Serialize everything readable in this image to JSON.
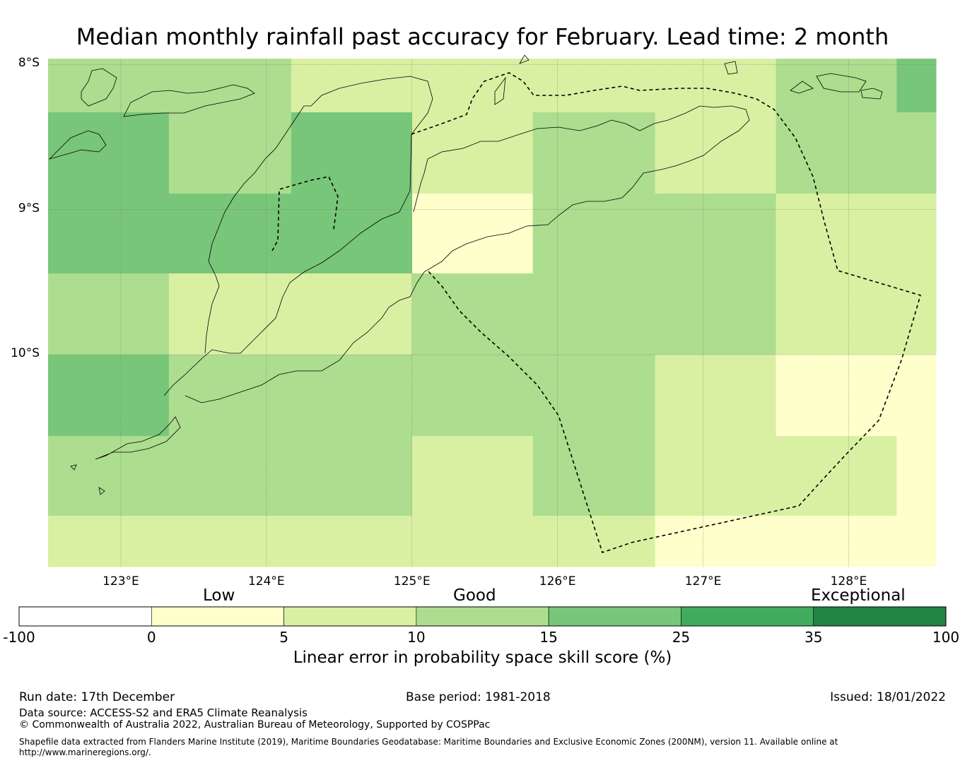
{
  "title": "Median monthly rainfall past accuracy for February. Lead time: 2 month",
  "map": {
    "lat_ticks": [
      {
        "value": -8,
        "label": "8°S"
      },
      {
        "value": -9,
        "label": "9°S"
      },
      {
        "value": -10,
        "label": "10°S"
      }
    ],
    "lon_ticks": [
      {
        "value": 123,
        "label": "123°E"
      },
      {
        "value": 124,
        "label": "124°E"
      },
      {
        "value": 125,
        "label": "125°E"
      },
      {
        "value": 126,
        "label": "126°E"
      },
      {
        "value": 127,
        "label": "127°E"
      },
      {
        "value": 128,
        "label": "128°E"
      }
    ],
    "extent": {
      "lon_min": 122.5,
      "lon_max": 128.6,
      "lat_max": -7.96,
      "lat_min": -11.46
    },
    "grid": {
      "lon_edges": [
        122.5,
        123.33,
        124.17,
        125.0,
        125.83,
        126.67,
        127.5,
        128.33,
        128.6
      ],
      "lat_edges": [
        -7.96,
        -8.33,
        -8.89,
        -9.44,
        -10.0,
        -10.56,
        -11.11,
        -11.46
      ],
      "skill_classes": [
        [
          2,
          2,
          1,
          1,
          1,
          1,
          2,
          3
        ],
        [
          3,
          2,
          3,
          1,
          2,
          1,
          2,
          2
        ],
        [
          3,
          3,
          3,
          0,
          2,
          2,
          1,
          1
        ],
        [
          2,
          1,
          1,
          2,
          2,
          2,
          1,
          1
        ],
        [
          3,
          2,
          2,
          2,
          2,
          1,
          0,
          0
        ],
        [
          2,
          2,
          2,
          1,
          2,
          1,
          1,
          0
        ],
        [
          1,
          1,
          1,
          1,
          1,
          0,
          0,
          0
        ]
      ]
    }
  },
  "colorbar": {
    "category_labels": [
      "Low",
      "Good",
      "Exceptional"
    ],
    "ticks": [
      "-100",
      "0",
      "5",
      "10",
      "15",
      "25",
      "35",
      "100"
    ],
    "colors": [
      "#ffffff",
      "#ffffcc",
      "#d9f0a3",
      "#addd8e",
      "#78c679",
      "#41ab5d",
      "#238443"
    ],
    "label": "Linear error in probability space skill score (%)"
  },
  "footer": {
    "run_date": "Run date: 17th December",
    "base_period": "Base period: 1981-2018",
    "issued": "Issued: 18/01/2022",
    "data_source": "Data source: ACCESS-S2 and ERA5 Climate Reanalysis",
    "copyright": "© Commonwealth of Australia 2022, Australian Bureau of Meteorology, Supported by COSPPac",
    "shapefile_note": "Shapefile data extracted from Flanders Marine Institute (2019), Maritime Boundaries Geodatabase: Maritime Boundaries and Exclusive Economic Zones (200NM), version 11. Available online at http://www.marineregions.org/."
  }
}
